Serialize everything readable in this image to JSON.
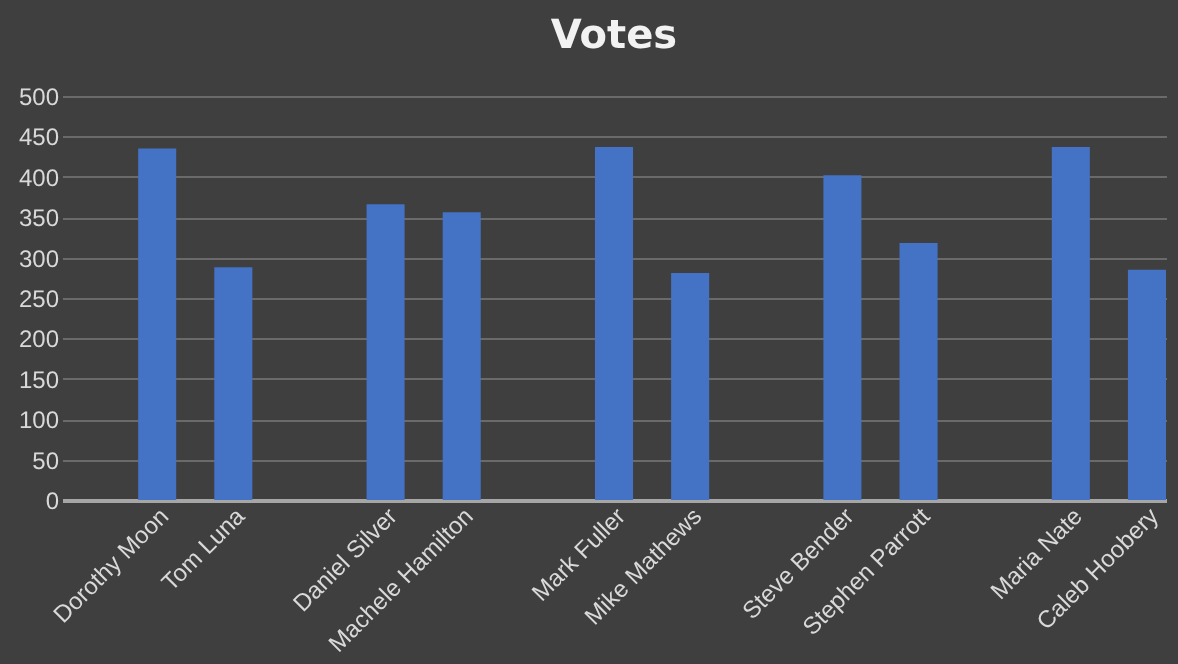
{
  "chart_data": {
    "type": "bar",
    "title": "Votes",
    "categories": [
      null,
      "Dorothy Moon",
      "Tom Luna",
      null,
      "Daniel Silver",
      "Machele Hamilton",
      null,
      "Mark Fuller",
      "Mike Mathews",
      null,
      "Steve Bender",
      "Stephen Parrott",
      null,
      "Maria Nate",
      "Caleb Hoobery"
    ],
    "values": [
      null,
      435,
      288,
      null,
      366,
      356,
      null,
      437,
      281,
      null,
      402,
      318,
      null,
      437,
      285
    ],
    "color": "#4472c4",
    "ylim": [
      0,
      500
    ],
    "yticks": [
      0,
      50,
      100,
      150,
      200,
      250,
      300,
      350,
      400,
      450,
      500
    ],
    "grid": "y"
  }
}
